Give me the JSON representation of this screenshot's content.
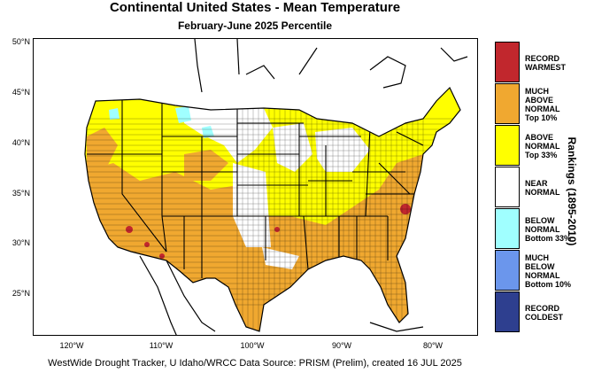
{
  "title": "Continental United States - Mean Temperature",
  "subtitle": "February-June 2025 Percentile",
  "footer": "WestWide Drought Tracker, U Idaho/WRCC Data Source: PRISM (Prelim), created 16 JUL 2025",
  "lat_ticks": [
    "50°N",
    "45°N",
    "40°N",
    "35°N",
    "30°N",
    "25°N"
  ],
  "lon_ticks": [
    "120°W",
    "110°W",
    "100°W",
    "90°W",
    "80°W"
  ],
  "legend": {
    "axis_label": "Rankings (1895-2010)",
    "items": [
      {
        "lines": [
          "RECORD",
          "WARMEST"
        ],
        "color": "#c1272d"
      },
      {
        "lines": [
          "MUCH",
          "ABOVE",
          "NORMAL",
          "Top 10%"
        ],
        "color": "#f0a830"
      },
      {
        "lines": [
          "ABOVE",
          "NORMAL",
          "Top 33%"
        ],
        "color": "#ffff00"
      },
      {
        "lines": [
          "NEAR",
          "NORMAL"
        ],
        "color": "#ffffff"
      },
      {
        "lines": [
          "BELOW",
          "NORMAL",
          "Bottom 33%"
        ],
        "color": "#a0ffff"
      },
      {
        "lines": [
          "MUCH",
          "BELOW",
          "NORMAL",
          "Bottom 10%"
        ],
        "color": "#6b96ec"
      },
      {
        "lines": [
          "RECORD",
          "COLDEST"
        ],
        "color": "#2e3f8f"
      }
    ]
  }
}
